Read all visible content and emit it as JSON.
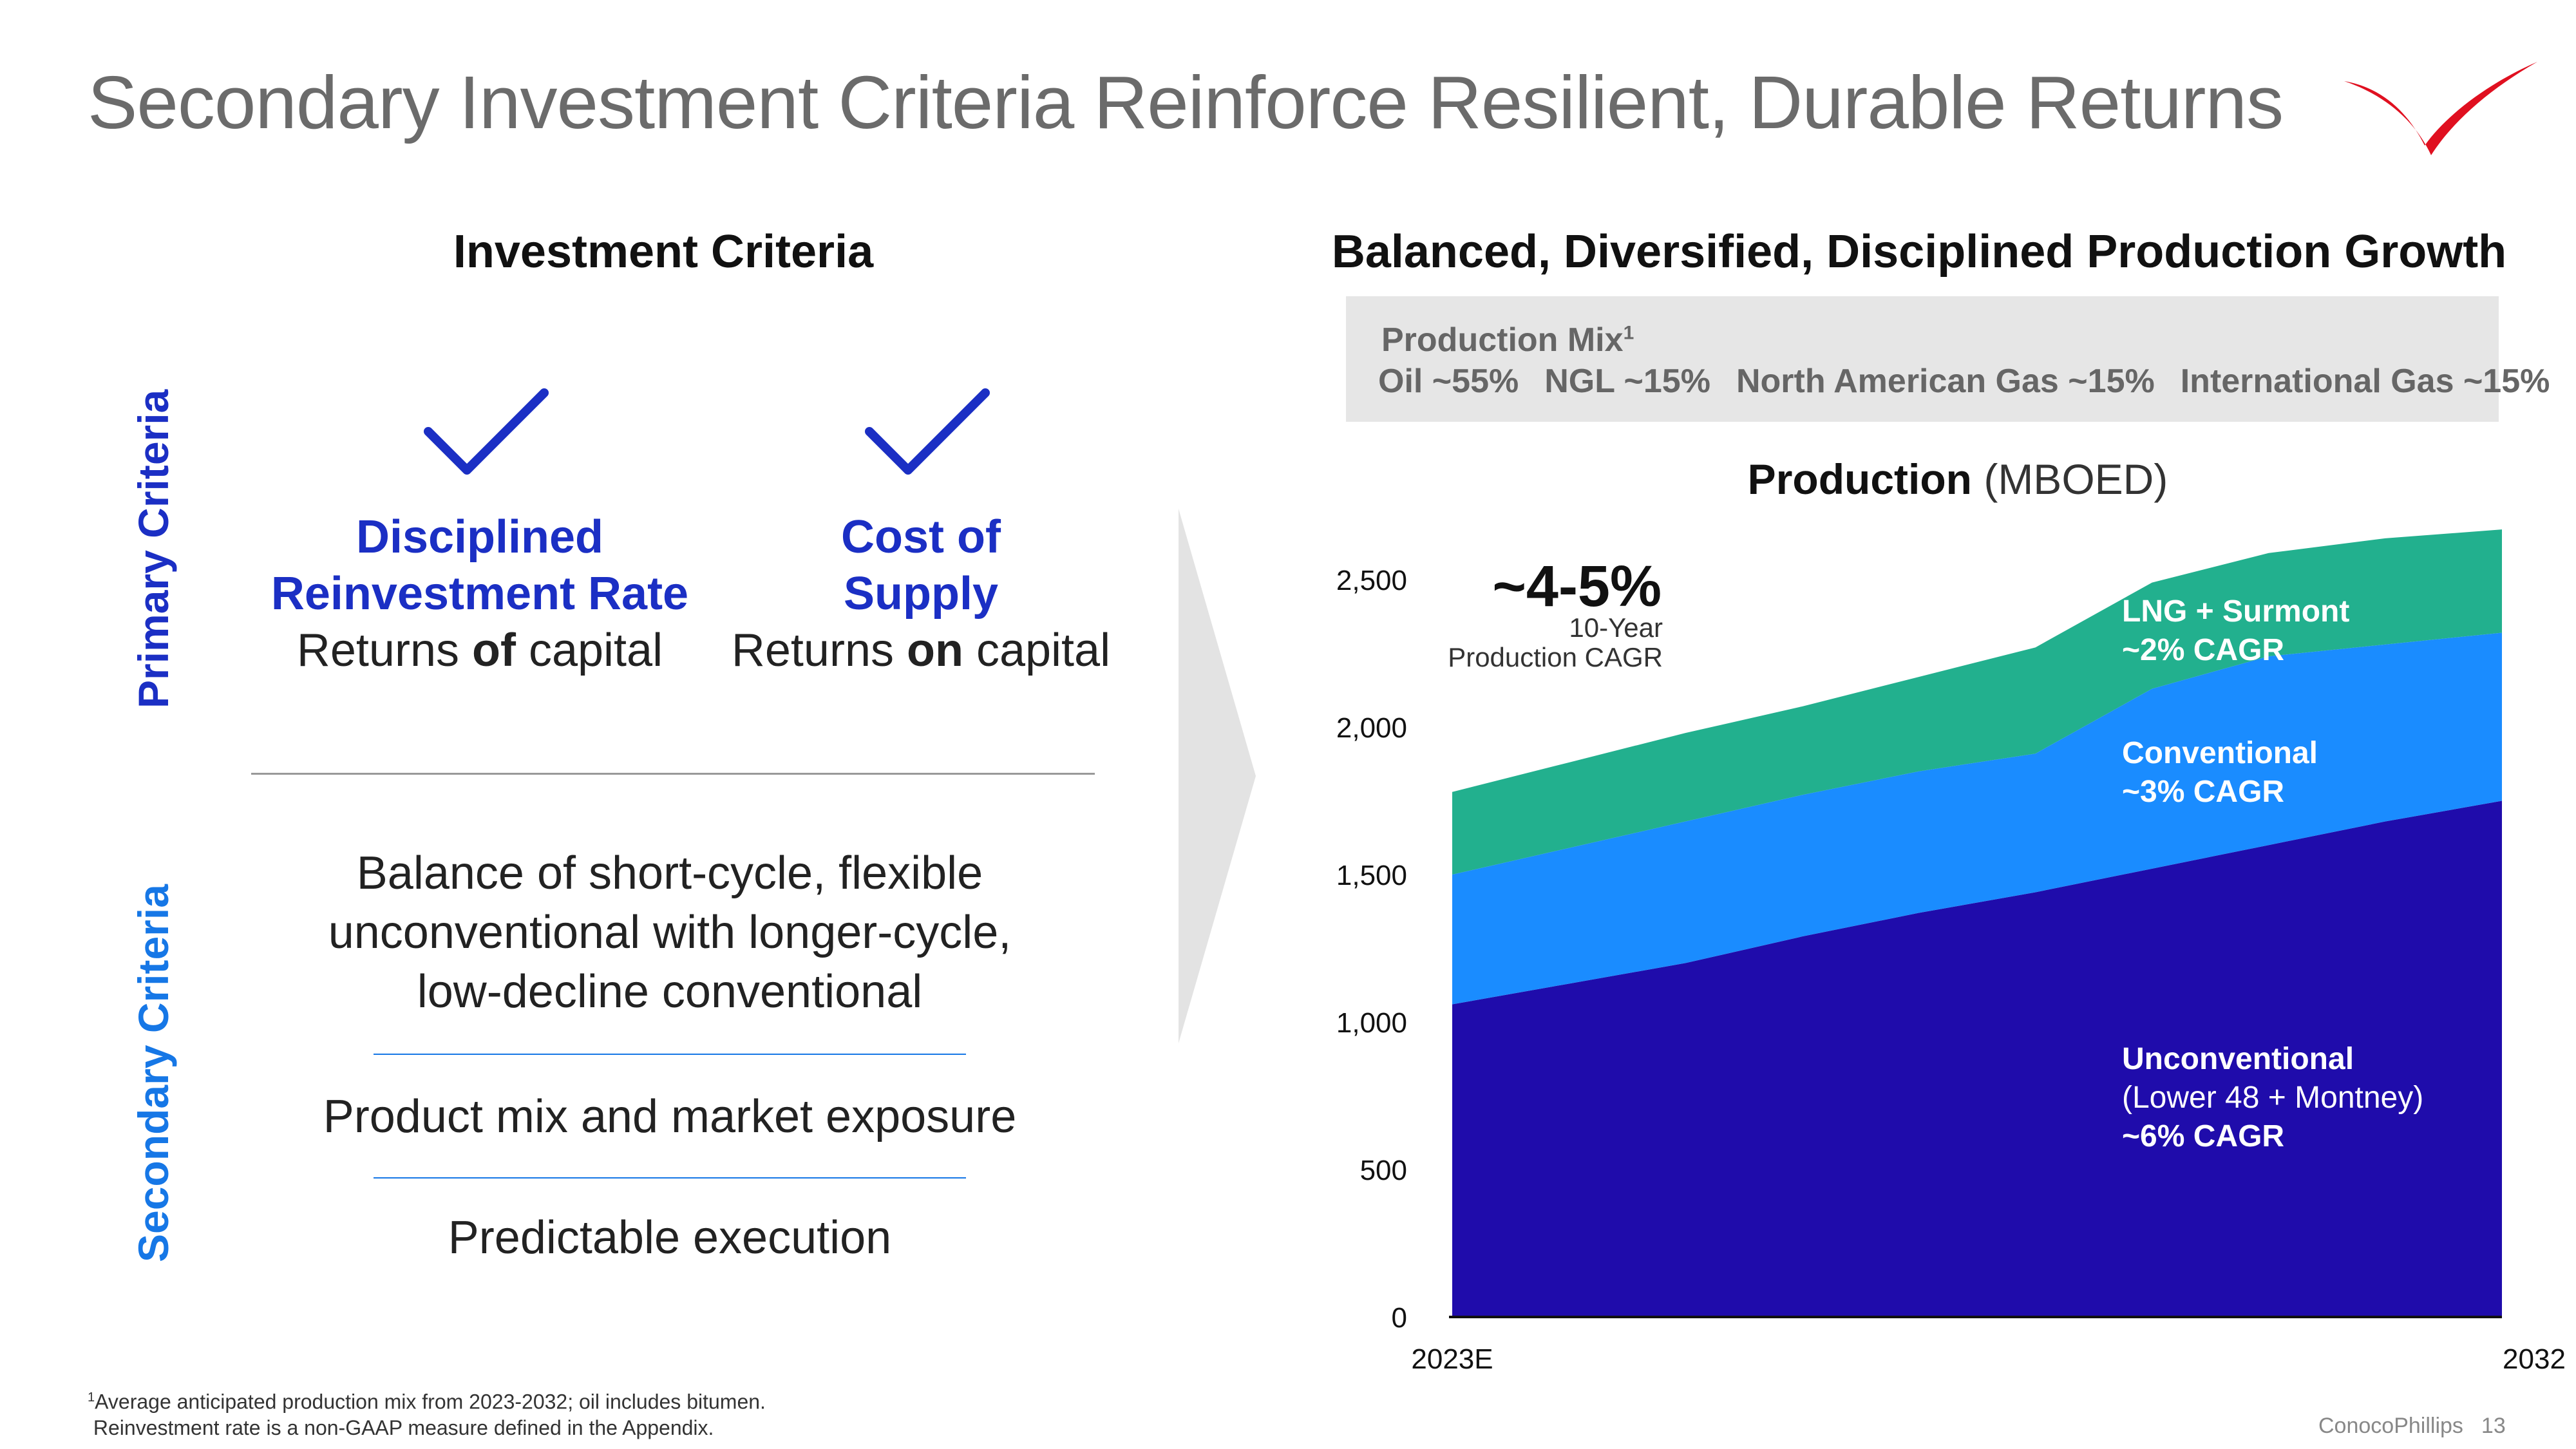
{
  "title": "Secondary Investment Criteria Reinforce Resilient, Durable Returns",
  "colors": {
    "brand_red": "#e01020",
    "primary_blue": "#1b2fc4",
    "secondary_blue": "#1677e6",
    "unconventional": "#1f0cab",
    "conventional": "#1a8cff",
    "lng": "#22b08e"
  },
  "left": {
    "heading": "Investment Criteria",
    "primary_label": "Primary Criteria",
    "secondary_label": "Secondary Criteria",
    "primary_items": [
      {
        "icon": "check-icon",
        "title_line1": "Disciplined",
        "title_line2": "Reinvestment Rate",
        "sub_pre": "Returns ",
        "sub_bold": "of",
        "sub_post": " capital"
      },
      {
        "icon": "check-icon",
        "title_line1": "Cost of",
        "title_line2": "Supply",
        "sub_pre": "Returns ",
        "sub_bold": "on",
        "sub_post": " capital"
      }
    ],
    "secondary_items": [
      {
        "line1": "Balance of short-cycle, flexible",
        "line2": "unconventional with longer-cycle,",
        "line3": "low-decline conventional"
      },
      {
        "line1": "Product mix and market exposure"
      },
      {
        "line1": "Predictable execution"
      }
    ]
  },
  "right": {
    "heading": "Balanced, Diversified, Disciplined Production Growth",
    "mix_title": "Production Mix",
    "mix_footnote_ref": "1",
    "mix_items": [
      "Oil ~55%",
      "NGL ~15%",
      "North American Gas ~15%",
      "International Gas ~15%"
    ],
    "production_title": "Production",
    "production_unit": "(MBOED)",
    "cagr_value": "~4-5%",
    "cagr_label_line1": "10-Year",
    "cagr_label_line2": "Production CAGR"
  },
  "chart_data": {
    "type": "area",
    "stacked": true,
    "x_start_label": "2023E",
    "x_end_label": "2032",
    "x": [
      0,
      1,
      2,
      3,
      4,
      5,
      6,
      7,
      8,
      9
    ],
    "ylim": [
      0,
      2500
    ],
    "yticks": [
      "0",
      "500",
      "1,000",
      "1,500",
      "2,000",
      "2,500"
    ],
    "series": [
      {
        "label_line1": "Unconventional",
        "label_line2": "(Lower 48 + Montney)",
        "label_line3": "~6% CAGR",
        "values": [
          1060,
          1130,
          1200,
          1290,
          1370,
          1440,
          1520,
          1600,
          1680,
          1750
        ]
      },
      {
        "label_line1": "Conventional",
        "label_line2": "~3% CAGR",
        "values": [
          440,
          460,
          480,
          480,
          480,
          470,
          610,
          640,
          600,
          570
        ]
      },
      {
        "label_line1": "LNG + Surmont",
        "label_line2": "~2% CAGR",
        "values": [
          280,
          290,
          300,
          300,
          320,
          360,
          360,
          350,
          360,
          350
        ]
      }
    ]
  },
  "footnote_line1": "Average anticipated production mix from 2023-2032; oil includes bitumen.",
  "footnote_ref": "1",
  "footnote_line2": "Reinvestment rate is a non-GAAP measure defined in the Appendix.",
  "footer_company": "ConocoPhillips",
  "footer_page": "13"
}
